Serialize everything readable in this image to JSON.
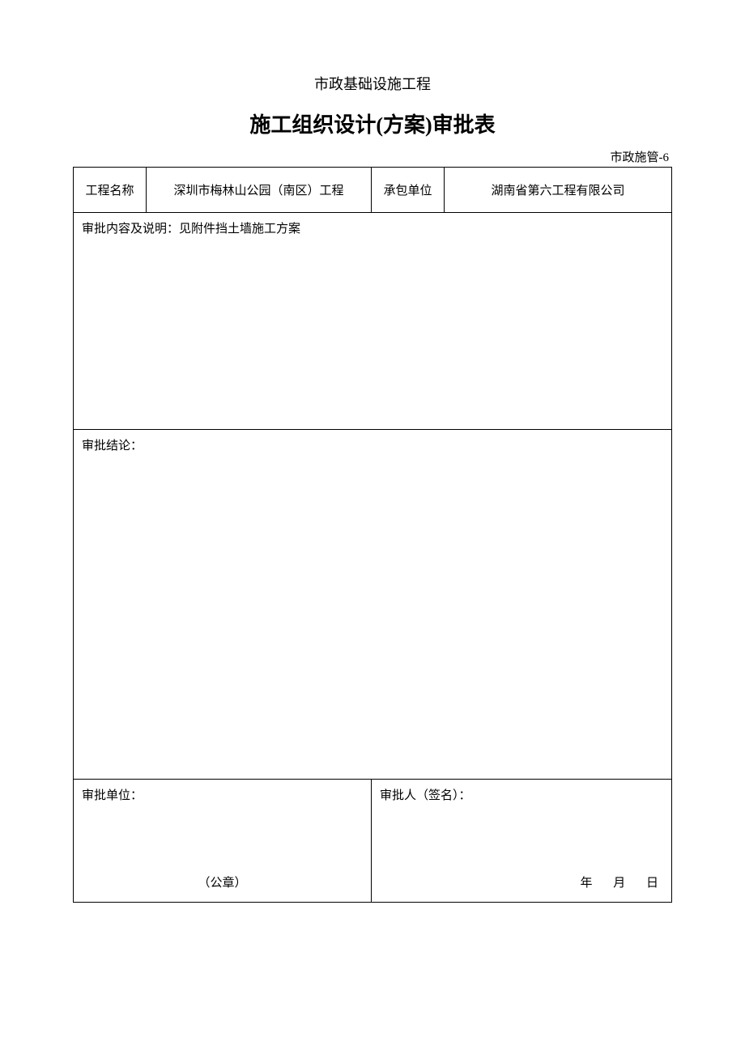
{
  "header": {
    "subtitle": "市政基础设施工程",
    "title": "施工组织设计(方案)审批表",
    "form_code": "市政施管-6"
  },
  "row1": {
    "project_name_label": "工程名称",
    "project_name_value": "深圳市梅林山公园（南区）工程",
    "contractor_label": "承包单位",
    "contractor_value": "湖南省第六工程有限公司"
  },
  "content": {
    "label": "审批内容及说明：见附件挡土墙施工方案"
  },
  "conclusion": {
    "label": "审批结论："
  },
  "approval": {
    "unit_label": "审批单位：",
    "stamp": "（公章）",
    "approver_label": "审批人（签名）：",
    "date_year": "年",
    "date_month": "月",
    "date_day": "日"
  },
  "colors": {
    "text": "#000000",
    "border": "#000000",
    "background": "#ffffff"
  }
}
